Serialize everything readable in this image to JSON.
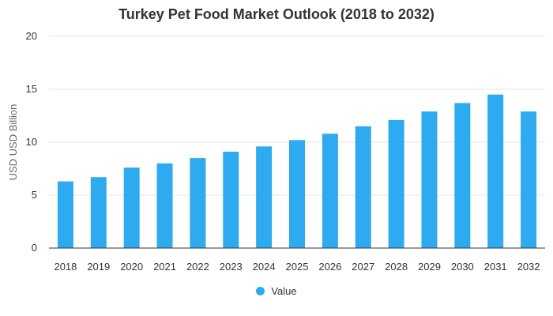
{
  "chart_data": {
    "type": "bar",
    "title": "Turkey Pet Food Market Outlook (2018 to 2032)",
    "xlabel": "",
    "ylabel": "USD USD Billion",
    "ylim": [
      0,
      20
    ],
    "yticks": [
      0,
      5,
      10,
      15,
      20
    ],
    "categories": [
      "2018",
      "2019",
      "2020",
      "2021",
      "2022",
      "2023",
      "2024",
      "2025",
      "2026",
      "2027",
      "2028",
      "2029",
      "2030",
      "2031",
      "2032"
    ],
    "series": [
      {
        "name": "Value",
        "color": "#2eaaf0",
        "values": [
          6.3,
          6.7,
          7.6,
          8.0,
          8.5,
          9.1,
          9.6,
          10.2,
          10.8,
          11.5,
          12.1,
          12.9,
          13.7,
          14.5,
          12.9
        ]
      }
    ],
    "grid": true,
    "legend_position": "bottom"
  }
}
